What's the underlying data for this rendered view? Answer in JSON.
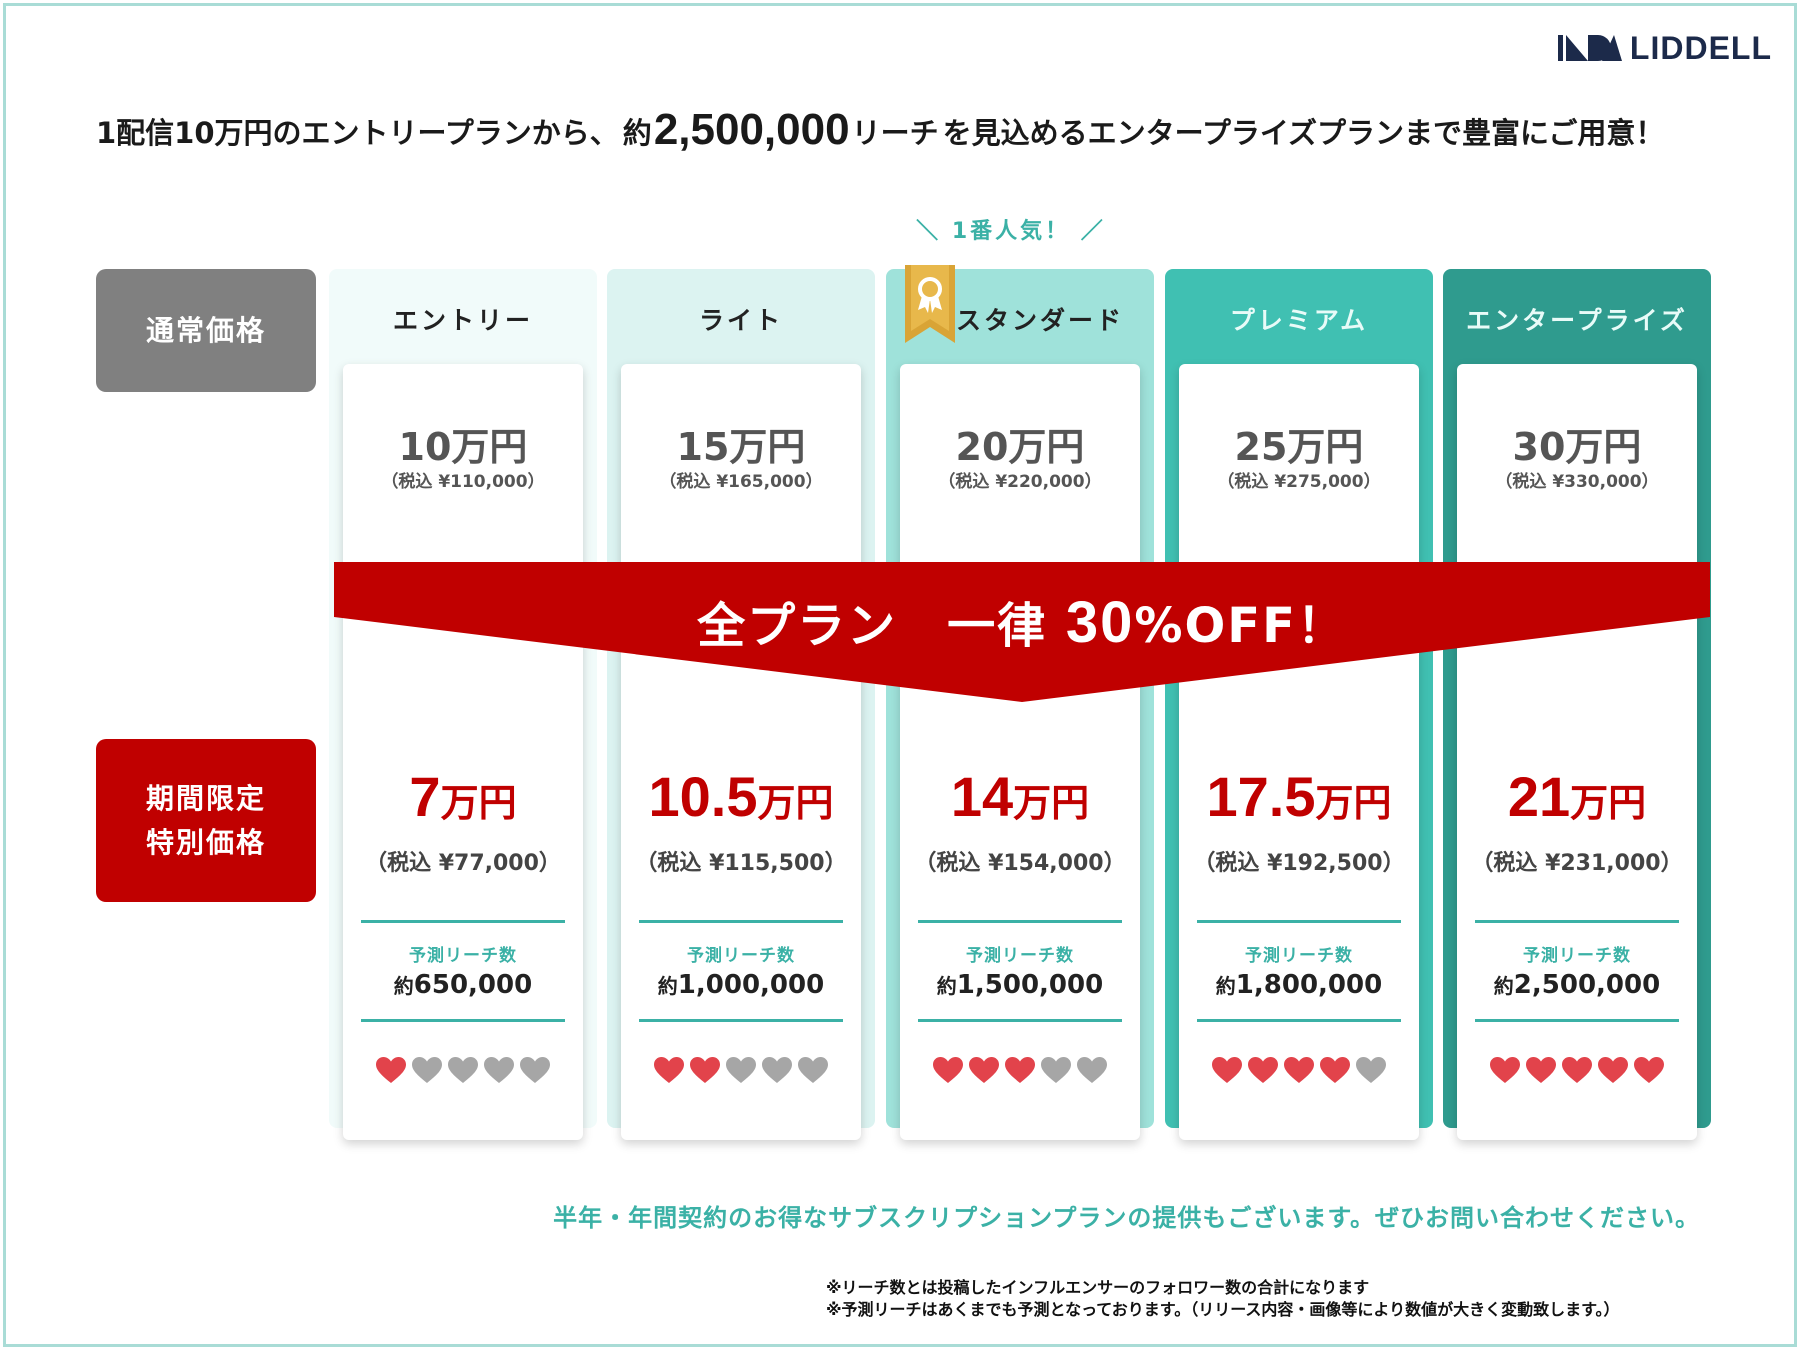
{
  "brand": {
    "name": "LIDDELL"
  },
  "headline": {
    "before": "1配信10万円のエントリープランから、",
    "em_prefix": "約",
    "em_number": "2,500,000",
    "em_suffix": "リーチ",
    "after": "を見込めるエンタープライズプランまで豊富にご用意！"
  },
  "popular_label": "＼ 1番人気！ ／",
  "row_labels": {
    "regular": "通常価格",
    "special_line1": "期間限定",
    "special_line2": "特別価格"
  },
  "banner": {
    "part1": "全プラン　一律 ",
    "percent": "30",
    "part2": "%OFF！"
  },
  "reach_label": "予測リーチ数",
  "reach_prefix": "約",
  "plans": [
    {
      "name": "エントリー",
      "regular_price": "10万円",
      "regular_tax": "（税込 ¥110,000）",
      "sale_number": "7",
      "sale_unit": "万円",
      "sale_tax": "（税込 ¥77,000）",
      "reach": "650,000",
      "rating": 1,
      "header_color": "#f1fbfa",
      "name_color": "#222222"
    },
    {
      "name": "ライト",
      "regular_price": "15万円",
      "regular_tax": "（税込 ¥165,000）",
      "sale_number": "10.5",
      "sale_unit": "万円",
      "sale_tax": "（税込 ¥115,500）",
      "reach": "1,000,000",
      "rating": 2,
      "header_color": "#dcf3f1",
      "name_color": "#222222"
    },
    {
      "name": "スタンダード",
      "regular_price": "20万円",
      "regular_tax": "（税込 ¥220,000）",
      "sale_number": "14",
      "sale_unit": "万円",
      "sale_tax": "（税込 ¥154,000）",
      "reach": "1,500,000",
      "rating": 3,
      "header_color": "#9fe2da",
      "name_color": "#222222"
    },
    {
      "name": "プレミアム",
      "regular_price": "25万円",
      "regular_tax": "（税込 ¥275,000）",
      "sale_number": "17.5",
      "sale_unit": "万円",
      "sale_tax": "（税込 ¥192,500）",
      "reach": "1,800,000",
      "rating": 4,
      "header_color": "#40c0b2",
      "name_color": "#e8fbf8"
    },
    {
      "name": "エンタープライズ",
      "regular_price": "30万円",
      "regular_tax": "（税込 ¥330,000）",
      "sale_number": "21",
      "sale_unit": "万円",
      "sale_tax": "（税込 ¥231,000）",
      "reach": "2,500,000",
      "rating": 5,
      "header_color": "#2f9b8e",
      "name_color": "#e8fbf8"
    }
  ],
  "rating_max": 5,
  "subscription_note": "半年・年間契約のお得なサブスクリプションプランの提供もございます。ぜひお問い合わせください。",
  "notes": [
    "※リーチ数とは投稿したインフルエンサーのフォロワー数の合計になります",
    "※予測リーチはあくまでも予測となっております。（リリース内容・画像等により数値が大きく変動致します。）"
  ],
  "colors": {
    "accent_teal": "#3bb1a6",
    "sale_red": "#c00000",
    "heart_on": "#e2434b",
    "heart_off": "#a6a6a6",
    "label_gray": "#808080"
  }
}
